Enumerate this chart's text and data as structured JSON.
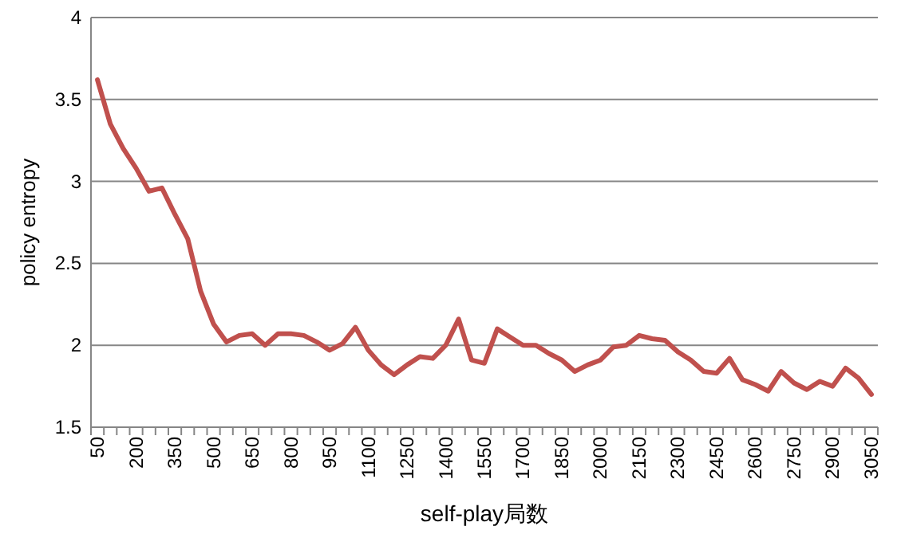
{
  "chart_data": {
    "type": "line",
    "xlabel": "self-play局数",
    "ylabel": "policy entropy",
    "categories": [
      "50",
      null,
      null,
      "200",
      null,
      null,
      "350",
      null,
      null,
      "500",
      null,
      null,
      "650",
      null,
      null,
      "800",
      null,
      null,
      "950",
      null,
      null,
      "1100",
      null,
      null,
      "1250",
      null,
      null,
      "1400",
      null,
      null,
      "1550",
      null,
      null,
      "1700",
      null,
      null,
      "1850",
      null,
      null,
      "2000",
      null,
      null,
      "2150",
      null,
      null,
      "2300",
      null,
      null,
      "2450",
      null,
      null,
      "2600",
      null,
      null,
      "2750",
      null,
      null,
      "2900",
      null,
      null,
      "3050"
    ],
    "series": [
      {
        "color": "#c0504d",
        "values": [
          3.62,
          3.35,
          3.2,
          3.08,
          2.94,
          2.96,
          2.8,
          2.65,
          2.33,
          2.13,
          2.02,
          2.06,
          2.07,
          2.0,
          2.07,
          2.07,
          2.06,
          2.02,
          1.97,
          2.01,
          2.11,
          1.97,
          1.88,
          1.82,
          1.88,
          1.93,
          1.92,
          2.0,
          2.16,
          1.91,
          1.89,
          2.1,
          2.05,
          2.0,
          2.0,
          1.95,
          1.91,
          1.84,
          1.88,
          1.91,
          1.99,
          2.0,
          2.06,
          2.04,
          2.03,
          1.96,
          1.91,
          1.84,
          1.83,
          1.92,
          1.79,
          1.76,
          1.72,
          1.84,
          1.77,
          1.73,
          1.78,
          1.75,
          1.86,
          1.8,
          1.7
        ]
      }
    ],
    "ylim": [
      1.5,
      4
    ],
    "yticks": [
      1.5,
      2,
      2.5,
      3,
      3.5,
      4
    ],
    "grid": "y",
    "marker": "none",
    "line_style": "solid"
  }
}
